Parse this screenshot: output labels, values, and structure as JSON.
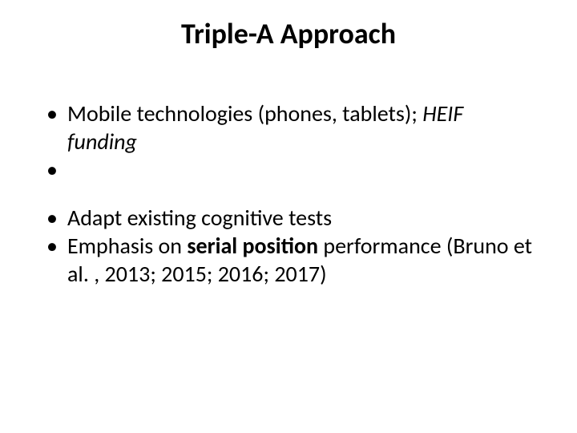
{
  "slide": {
    "background_color": "#ffffff",
    "text_color": "#000000",
    "font_family": "Calibri",
    "title": {
      "text": "Triple-A Approach",
      "fontsize": 36,
      "weight": 700,
      "align": "center"
    },
    "bullets": {
      "fontsize": 28,
      "line_height": 1.25,
      "marker": "•",
      "items": [
        {
          "runs": [
            {
              "text": "Mobile technologies (phones, tablets); ",
              "italic": false,
              "bold": false
            },
            {
              "text": "HEIF funding",
              "italic": true,
              "bold": false
            }
          ]
        },
        {
          "runs": [
            {
              "text": "Adapt existing cognitive tests",
              "italic": false,
              "bold": false
            }
          ]
        },
        {
          "runs": [
            {
              "text": "Emphasis on ",
              "italic": false,
              "bold": false
            },
            {
              "text": "serial position",
              "italic": false,
              "bold": true
            },
            {
              "text": " performance (Bruno et al. , 2013; 2015; 2016; 2017)",
              "italic": false,
              "bold": false
            }
          ]
        }
      ],
      "group_gap_after_first": 60
    }
  }
}
